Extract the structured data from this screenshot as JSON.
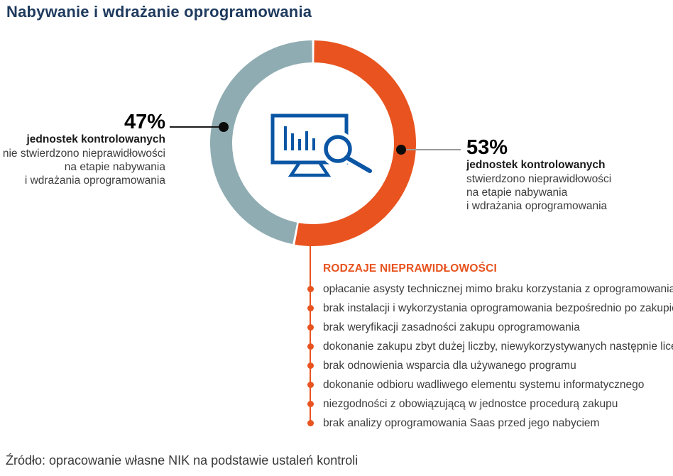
{
  "title": "Nabywanie i wdrażanie oprogramowania",
  "source": "Źródło: opracowanie własne NIK na podstawie ustaleń kontroli",
  "colors": {
    "accent_orange": "#e8531f",
    "segment_teal": "#8facb2",
    "icon_blue": "#0b56a4",
    "title_navy": "#1e3a5e",
    "dot_black": "#0b0b0b",
    "connector_left": "#1a1a1a",
    "connector_right": "#9a9a9a"
  },
  "chart_data": {
    "type": "pie",
    "subtype": "donut",
    "title": "Nabywanie i wdrażanie oprogramowania",
    "series": [
      {
        "name": "stwierdzono nieprawidłowości",
        "value": 53,
        "color": "#e8531f"
      },
      {
        "name": "nie stwierdzono nieprawidłowości",
        "value": 47,
        "color": "#8facb2"
      }
    ],
    "unit": "% jednostek kontrolowanych",
    "start_angle_deg": -90,
    "direction": "clockwise",
    "center_icon": "monitor-with-bar-chart-and-magnifier",
    "legend_position": "callouts"
  },
  "callout_left": {
    "percent": "47%",
    "bold_line": "jednostek kontrolowanych",
    "lines": [
      "nie stwierdzono nieprawidłowości",
      "na etapie nabywania",
      "i wdrażania oprogramowania"
    ]
  },
  "callout_right": {
    "percent": "53%",
    "bold_line": "jednostek kontrolowanych",
    "lines": [
      "stwierdzono nieprawidłowości",
      "na etapie nabywania",
      "i wdrażania oprogramowania"
    ]
  },
  "irregularities": {
    "header": "RODZAJE NIEPRAWIDŁOWOŚCI",
    "items": [
      "opłacanie asysty technicznej mimo braku korzystania z oprogramowania",
      "brak instalacji i wykorzystania oprogramowania bezpośrednio po zakupie",
      "brak weryfikacji zasadności zakupu oprogramowania",
      "dokonanie zakupu zbyt dużej liczby, niewykorzystywanych następnie licencji",
      "brak odnowienia wsparcia dla używanego programu",
      "dokonanie odbioru wadliwego elementu systemu informatycznego",
      "niezgodności z obowiązującą w jednostce procedurą zakupu",
      "brak analizy oprogramowania Saas przed jego nabyciem"
    ]
  }
}
